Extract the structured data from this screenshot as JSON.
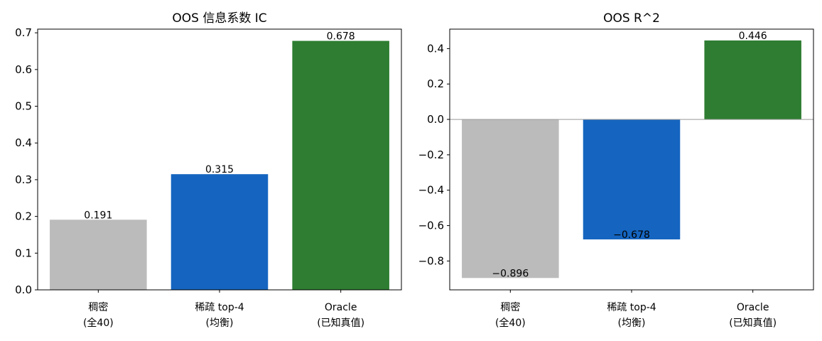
{
  "chart_data": [
    {
      "type": "bar",
      "title": "OOS 信息系数 IC",
      "xlabel": "",
      "ylabel": "",
      "categories": [
        [
          "稠密",
          "(全40)"
        ],
        [
          "稀疏 top-4",
          "(均衡)"
        ],
        [
          "Oracle",
          "(已知真值)"
        ]
      ],
      "values": [
        0.191,
        0.315,
        0.678
      ],
      "data_labels": [
        "0.191",
        "0.315",
        "0.678"
      ],
      "colors": [
        "#bbbbbb",
        "#1565c0",
        "#2e7d32"
      ],
      "ylim": [
        0,
        0.71
      ],
      "yticks": [
        0.0,
        0.1,
        0.2,
        0.3,
        0.4,
        0.5,
        0.6,
        0.7
      ],
      "ytick_labels": [
        "0.0",
        "0.1",
        "0.2",
        "0.3",
        "0.4",
        "0.5",
        "0.6",
        "0.7"
      ],
      "grid": false,
      "zero_line": false
    },
    {
      "type": "bar",
      "title": "OOS R^2",
      "xlabel": "",
      "ylabel": "",
      "categories": [
        [
          "稠密",
          "(全40)"
        ],
        [
          "稀疏 top-4",
          "(均衡)"
        ],
        [
          "Oracle",
          "(已知真值)"
        ]
      ],
      "values": [
        -0.896,
        -0.678,
        0.446
      ],
      "data_labels": [
        "−0.896",
        "−0.678",
        "0.446"
      ],
      "colors": [
        "#bbbbbb",
        "#1565c0",
        "#2e7d32"
      ],
      "ylim": [
        -0.963,
        0.51
      ],
      "yticks": [
        -0.8,
        -0.6,
        -0.4,
        -0.2,
        0.0,
        0.2,
        0.4
      ],
      "ytick_labels": [
        "−0.8",
        "−0.6",
        "−0.4",
        "−0.2",
        "0.0",
        "0.2",
        "0.4"
      ],
      "grid": false,
      "zero_line": true,
      "zero_line_color": "#999999"
    }
  ]
}
